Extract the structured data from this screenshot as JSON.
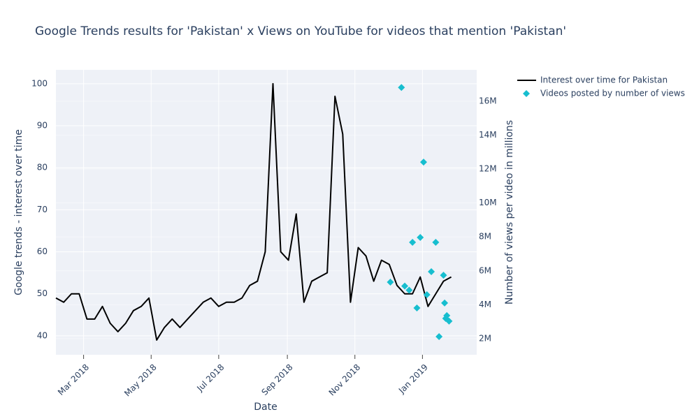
{
  "chart_data": {
    "type": "line",
    "title": "Google Trends results for 'Pakistan' x Views on YouTube for videos that mention 'Pakistan'",
    "xlabel": "Date",
    "ylabel": "Google trends - interest over time",
    "y2label": "Number of views per video in millions",
    "xlim": [
      "2018-02-04",
      "2019-02-19"
    ],
    "xticks": [
      {
        "value": "2018-03-01",
        "label": "Mar 2018"
      },
      {
        "value": "2018-05-01",
        "label": "May 2018"
      },
      {
        "value": "2018-07-01",
        "label": "Jul 2018"
      },
      {
        "value": "2018-09-01",
        "label": "Sep 2018"
      },
      {
        "value": "2018-11-01",
        "label": "Nov 2018"
      },
      {
        "value": "2019-01-01",
        "label": "Jan 2019"
      }
    ],
    "ylim": [
      35.5,
      103.3
    ],
    "yticks": [
      40,
      50,
      60,
      70,
      80,
      90,
      100
    ],
    "y2lim": [
      1050000,
      17850000
    ],
    "y2ticks": [
      {
        "value": 2000000,
        "label": "2M"
      },
      {
        "value": 4000000,
        "label": "4M"
      },
      {
        "value": 6000000,
        "label": "6M"
      },
      {
        "value": 8000000,
        "label": "8M"
      },
      {
        "value": 10000000,
        "label": "10M"
      },
      {
        "value": 12000000,
        "label": "12M"
      },
      {
        "value": 14000000,
        "label": "14M"
      },
      {
        "value": 16000000,
        "label": "16M"
      }
    ],
    "grid": true,
    "legend": "right",
    "series": [
      {
        "name": "Interest over time for Pakistan",
        "type": "line",
        "color": "#000000",
        "x": [
          "2018-02-04",
          "2018-02-11",
          "2018-02-18",
          "2018-02-25",
          "2018-03-04",
          "2018-03-11",
          "2018-03-18",
          "2018-03-25",
          "2018-04-01",
          "2018-04-08",
          "2018-04-15",
          "2018-04-22",
          "2018-04-29",
          "2018-05-06",
          "2018-05-13",
          "2018-05-20",
          "2018-05-27",
          "2018-06-03",
          "2018-06-10",
          "2018-06-17",
          "2018-06-24",
          "2018-07-01",
          "2018-07-08",
          "2018-07-15",
          "2018-07-22",
          "2018-07-29",
          "2018-08-05",
          "2018-08-12",
          "2018-08-19",
          "2018-08-26",
          "2018-09-02",
          "2018-09-09",
          "2018-09-16",
          "2018-09-23",
          "2018-09-30",
          "2018-10-07",
          "2018-10-14",
          "2018-10-21",
          "2018-10-28",
          "2018-11-04",
          "2018-11-11",
          "2018-11-18",
          "2018-11-25",
          "2018-12-02",
          "2018-12-09",
          "2018-12-16",
          "2018-12-23",
          "2018-12-30",
          "2019-01-06",
          "2019-01-13",
          "2019-01-20",
          "2019-01-27"
        ],
        "values": [
          49,
          48,
          50,
          50,
          44,
          44,
          47,
          43,
          41,
          43,
          46,
          47,
          49,
          39,
          42,
          44,
          42,
          44,
          46,
          48,
          49,
          47,
          48,
          48,
          49,
          52,
          53,
          60,
          100,
          60,
          58,
          69,
          48,
          53,
          54,
          55,
          97,
          88,
          48,
          61,
          59,
          53,
          58,
          57,
          52,
          50,
          50,
          54,
          47,
          50,
          53,
          54
        ]
      },
      {
        "name": "Videos posted by number of views",
        "type": "scatter",
        "marker": "diamond",
        "axis": "y2",
        "color": "#17becf",
        "x": [
          "2018-12-03",
          "2018-12-13",
          "2018-12-16",
          "2018-12-20",
          "2018-12-23",
          "2018-12-27",
          "2018-12-30",
          "2019-01-02",
          "2019-01-05",
          "2019-01-09",
          "2019-01-13",
          "2019-01-16",
          "2019-01-20",
          "2019-01-21",
          "2019-01-22",
          "2019-01-23",
          "2019-01-25"
        ],
        "values": [
          5330000,
          16810000,
          5100000,
          4860000,
          7680000,
          3810000,
          7970000,
          12410000,
          4590000,
          5950000,
          7680000,
          2120000,
          5740000,
          4100000,
          3190000,
          3360000,
          3030000
        ]
      }
    ]
  }
}
